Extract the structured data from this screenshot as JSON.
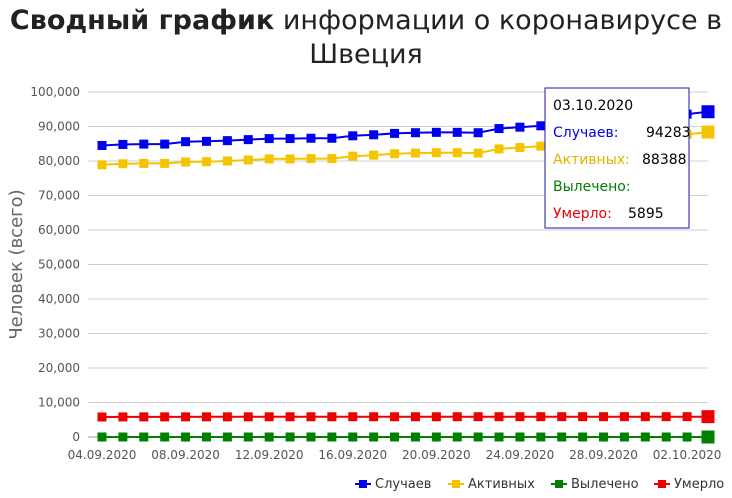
{
  "title_bold": "Сводный график",
  "title_rest": " информации о коронавирусе в",
  "title_line2": "Швеция",
  "chart_data": {
    "type": "line",
    "title": "Сводный график информации о коронавирусе в Швеция",
    "ylabel": "Человек (всего)",
    "xlabel": "",
    "ylim": [
      0,
      100000
    ],
    "yticks": [
      "0",
      "10,000",
      "20,000",
      "30,000",
      "40,000",
      "50,000",
      "60,000",
      "70,000",
      "80,000",
      "90,000",
      "100,000"
    ],
    "x": [
      "04.09.2020",
      "05.09.2020",
      "06.09.2020",
      "07.09.2020",
      "08.09.2020",
      "09.09.2020",
      "10.09.2020",
      "11.09.2020",
      "12.09.2020",
      "13.09.2020",
      "14.09.2020",
      "15.09.2020",
      "16.09.2020",
      "17.09.2020",
      "18.09.2020",
      "19.09.2020",
      "20.09.2020",
      "21.09.2020",
      "22.09.2020",
      "23.09.2020",
      "24.09.2020",
      "25.09.2020",
      "26.09.2020",
      "27.09.2020",
      "28.09.2020",
      "29.09.2020",
      "30.09.2020",
      "01.10.2020",
      "02.10.2020",
      "03.10.2020"
    ],
    "xtick_labels": [
      "04.09.2020",
      "08.09.2020",
      "12.09.2020",
      "16.09.2020",
      "20.09.2020",
      "24.09.2020",
      "28.09.2020",
      "02.10.2020"
    ],
    "grid": true,
    "legend_position": "bottom-right",
    "series": [
      {
        "name": "Случаев",
        "color": "#0000ee",
        "values": [
          84500,
          84800,
          84900,
          84900,
          85600,
          85700,
          85900,
          86200,
          86500,
          86500,
          86600,
          86600,
          87300,
          87600,
          88000,
          88200,
          88300,
          88300,
          88200,
          89400,
          89800,
          90200,
          90900,
          90900,
          90900,
          91000,
          92500,
          93300,
          93600,
          94283
        ]
      },
      {
        "name": "Активных",
        "color": "#f5c400",
        "values": [
          78900,
          79200,
          79300,
          79300,
          79700,
          79800,
          80000,
          80300,
          80600,
          80600,
          80700,
          80700,
          81400,
          81700,
          82100,
          82300,
          82400,
          82400,
          82300,
          83500,
          83900,
          84300,
          85000,
          85000,
          85000,
          85100,
          86600,
          87400,
          87700,
          88388
        ]
      },
      {
        "name": "Вылечено",
        "color": "#008000",
        "values": [
          0,
          0,
          0,
          0,
          0,
          0,
          0,
          0,
          0,
          0,
          0,
          0,
          0,
          0,
          0,
          0,
          0,
          0,
          0,
          0,
          0,
          0,
          0,
          0,
          0,
          0,
          0,
          0,
          0,
          0
        ]
      },
      {
        "name": "Умерло",
        "color": "#ee0000",
        "values": [
          5800,
          5820,
          5830,
          5835,
          5840,
          5843,
          5846,
          5850,
          5855,
          5860,
          5862,
          5865,
          5867,
          5870,
          5873,
          5876,
          5878,
          5880,
          5882,
          5884,
          5886,
          5888,
          5890,
          5891,
          5892,
          5893,
          5893,
          5894,
          5894,
          5895
        ]
      }
    ]
  },
  "tooltip": {
    "date": "03.10.2020",
    "rows": [
      {
        "label": "Случаев:",
        "value": "94283",
        "color": "#0000ee"
      },
      {
        "label": "Активных:",
        "value": "88388",
        "color": "#e0b400"
      },
      {
        "label": "Вылечено:",
        "value": "",
        "color": "#008000"
      },
      {
        "label": "Умерло:",
        "value": "5895",
        "color": "#ee0000"
      }
    ]
  }
}
